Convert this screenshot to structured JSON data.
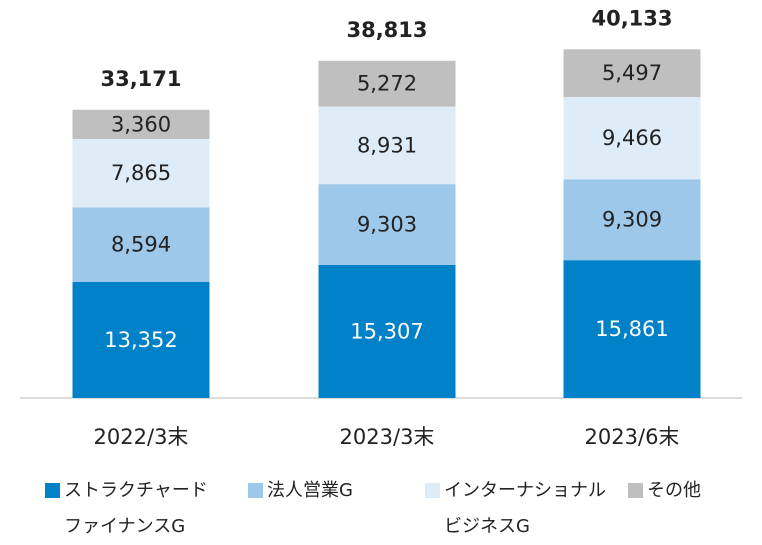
{
  "chart_data": {
    "type": "stacked_bar",
    "categories": [
      "2022/3末",
      "2023/3末",
      "2023/6末"
    ],
    "series": [
      {
        "name": "ストラクチャードファイナンスG",
        "color": "#0081c8",
        "values": [
          13352,
          15307,
          15861
        ],
        "value_labels": [
          "13,352",
          "15,307",
          "15,861"
        ]
      },
      {
        "name": "法人営業G",
        "color": "#9dc8ea",
        "values": [
          8594,
          9303,
          9309
        ],
        "value_labels": [
          "8,594",
          "9,303",
          "9,309"
        ]
      },
      {
        "name": "インターナショナルビジネスG",
        "color": "#deecf8",
        "values": [
          7865,
          8931,
          9466
        ],
        "value_labels": [
          "7,865",
          "8,931",
          "9,466"
        ]
      },
      {
        "name": "その他",
        "color": "#bfbfbf",
        "values": [
          3360,
          5272,
          5497
        ],
        "value_labels": [
          "3,360",
          "5,272",
          "5,497"
        ]
      }
    ],
    "totals": [
      33171,
      38813,
      40133
    ],
    "total_labels": [
      "33,171",
      "38,813",
      "40,133"
    ],
    "ylim": [
      0,
      45000
    ]
  }
}
